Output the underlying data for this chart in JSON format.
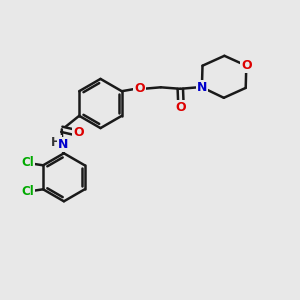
{
  "bg_color": "#e8e8e8",
  "bond_color": "#1a1a1a",
  "bond_width": 1.8,
  "atom_colors": {
    "O": "#dd0000",
    "N": "#0000cc",
    "Cl": "#00aa00",
    "C": "#1a1a1a",
    "H": "#333333"
  },
  "figsize": [
    3.0,
    3.0
  ],
  "dpi": 100
}
